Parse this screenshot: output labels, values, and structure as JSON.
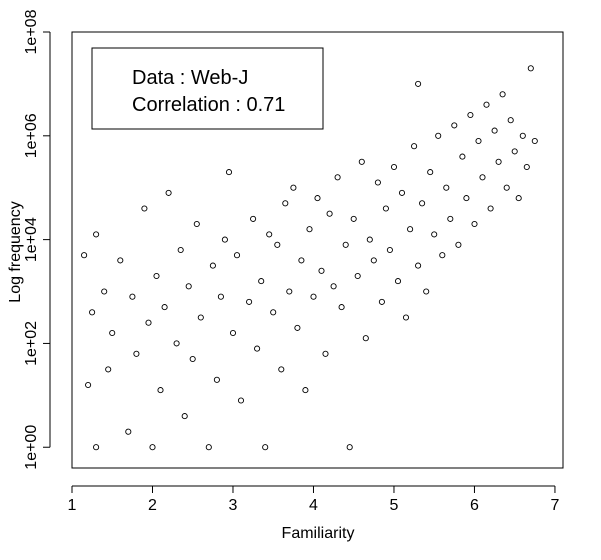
{
  "chart_data": {
    "type": "scatter",
    "title": "",
    "xlabel": "Familiarity",
    "ylabel": "Log frequency",
    "xlim": [
      1.0,
      7.1
    ],
    "ylim_log10": [
      -0.4,
      8.0
    ],
    "y_scale": "log",
    "x_ticks": [
      1,
      2,
      3,
      4,
      5,
      6,
      7
    ],
    "x_tick_labels": [
      "1",
      "2",
      "3",
      "4",
      "5",
      "6",
      "7"
    ],
    "y_ticks_log10": [
      0,
      2,
      4,
      6,
      8
    ],
    "y_tick_labels": [
      "1e+00",
      "1e+02",
      "1e+04",
      "1e+06",
      "1e+08"
    ],
    "legend": {
      "position": "top-left",
      "lines": [
        "Data : Web-J",
        "Correlation : 0.71"
      ]
    },
    "annotations": {
      "data_label": "Data : Web-J",
      "correlation_label": "Correlation : 0.71"
    },
    "marker": "open-circle",
    "series": [
      {
        "points": [
          [
            1.15,
            3.7
          ],
          [
            1.2,
            1.2
          ],
          [
            1.25,
            2.6
          ],
          [
            1.3,
            0.0
          ],
          [
            1.3,
            4.1
          ],
          [
            1.4,
            3.0
          ],
          [
            1.45,
            1.5
          ],
          [
            1.5,
            2.2
          ],
          [
            1.6,
            3.6
          ],
          [
            1.7,
            0.3
          ],
          [
            1.75,
            2.9
          ],
          [
            1.8,
            1.8
          ],
          [
            1.9,
            4.6
          ],
          [
            1.95,
            2.4
          ],
          [
            2.0,
            0.0
          ],
          [
            2.05,
            3.3
          ],
          [
            2.1,
            1.1
          ],
          [
            2.15,
            2.7
          ],
          [
            2.2,
            4.9
          ],
          [
            2.3,
            2.0
          ],
          [
            2.35,
            3.8
          ],
          [
            2.4,
            0.6
          ],
          [
            2.45,
            3.1
          ],
          [
            2.5,
            1.7
          ],
          [
            2.55,
            4.3
          ],
          [
            2.6,
            2.5
          ],
          [
            2.7,
            0.0
          ],
          [
            2.75,
            3.5
          ],
          [
            2.8,
            1.3
          ],
          [
            2.85,
            2.9
          ],
          [
            2.9,
            4.0
          ],
          [
            2.95,
            5.3
          ],
          [
            3.0,
            2.2
          ],
          [
            3.05,
            3.7
          ],
          [
            3.1,
            0.9
          ],
          [
            3.2,
            2.8
          ],
          [
            3.25,
            4.4
          ],
          [
            3.3,
            1.9
          ],
          [
            3.35,
            3.2
          ],
          [
            3.4,
            0.0
          ],
          [
            3.45,
            4.1
          ],
          [
            3.5,
            2.6
          ],
          [
            3.55,
            3.9
          ],
          [
            3.6,
            1.5
          ],
          [
            3.65,
            4.7
          ],
          [
            3.7,
            3.0
          ],
          [
            3.75,
            5.0
          ],
          [
            3.8,
            2.3
          ],
          [
            3.85,
            3.6
          ],
          [
            3.9,
            1.1
          ],
          [
            3.95,
            4.2
          ],
          [
            4.0,
            2.9
          ],
          [
            4.05,
            4.8
          ],
          [
            4.1,
            3.4
          ],
          [
            4.15,
            1.8
          ],
          [
            4.2,
            4.5
          ],
          [
            4.25,
            3.1
          ],
          [
            4.3,
            5.2
          ],
          [
            4.35,
            2.7
          ],
          [
            4.4,
            3.9
          ],
          [
            4.45,
            0.0
          ],
          [
            4.5,
            4.4
          ],
          [
            4.55,
            3.3
          ],
          [
            4.6,
            5.5
          ],
          [
            4.65,
            2.1
          ],
          [
            4.7,
            4.0
          ],
          [
            4.75,
            3.6
          ],
          [
            4.8,
            5.1
          ],
          [
            4.85,
            2.8
          ],
          [
            4.9,
            4.6
          ],
          [
            4.95,
            3.8
          ],
          [
            5.0,
            5.4
          ],
          [
            5.05,
            3.2
          ],
          [
            5.1,
            4.9
          ],
          [
            5.15,
            2.5
          ],
          [
            5.2,
            4.2
          ],
          [
            5.25,
            5.8
          ],
          [
            5.3,
            3.5
          ],
          [
            5.3,
            7.0
          ],
          [
            5.35,
            4.7
          ],
          [
            5.4,
            3.0
          ],
          [
            5.45,
            5.3
          ],
          [
            5.5,
            4.1
          ],
          [
            5.55,
            6.0
          ],
          [
            5.6,
            3.7
          ],
          [
            5.65,
            5.0
          ],
          [
            5.7,
            4.4
          ],
          [
            5.75,
            6.2
          ],
          [
            5.8,
            3.9
          ],
          [
            5.85,
            5.6
          ],
          [
            5.9,
            4.8
          ],
          [
            5.95,
            6.4
          ],
          [
            6.0,
            4.3
          ],
          [
            6.05,
            5.9
          ],
          [
            6.1,
            5.2
          ],
          [
            6.15,
            6.6
          ],
          [
            6.2,
            4.6
          ],
          [
            6.25,
            6.1
          ],
          [
            6.3,
            5.5
          ],
          [
            6.35,
            6.8
          ],
          [
            6.4,
            5.0
          ],
          [
            6.45,
            6.3
          ],
          [
            6.5,
            5.7
          ],
          [
            6.55,
            4.8
          ],
          [
            6.6,
            6.0
          ],
          [
            6.65,
            5.4
          ],
          [
            6.7,
            7.3
          ],
          [
            6.75,
            5.9
          ]
        ]
      }
    ]
  }
}
